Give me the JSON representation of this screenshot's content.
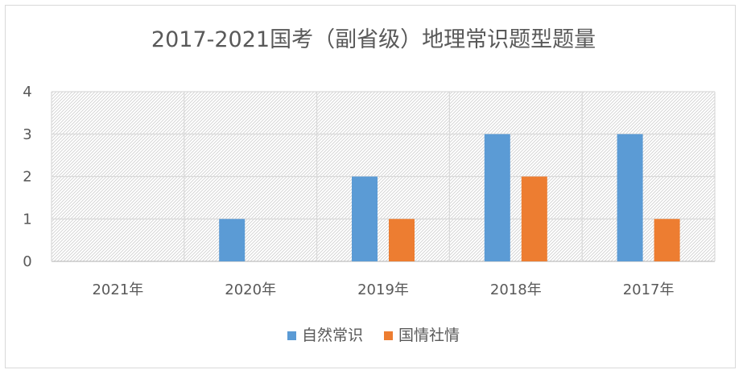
{
  "chart_data": {
    "type": "bar",
    "title": "2017-2021国考（副省级）地理常识题型题量",
    "categories": [
      "2021年",
      "2020年",
      "2019年",
      "2018年",
      "2017年"
    ],
    "series": [
      {
        "name": "自然常识",
        "color": "#5b9bd5",
        "values": [
          0,
          1,
          2,
          3,
          3
        ]
      },
      {
        "name": "国情社情",
        "color": "#ed7d31",
        "values": [
          0,
          0,
          1,
          2,
          1
        ]
      }
    ],
    "ylim": [
      0,
      4
    ],
    "yticks": [
      "0",
      "1",
      "2",
      "3",
      "4"
    ],
    "xlabel": "",
    "ylabel": "",
    "grid": true,
    "legend_position": "bottom"
  }
}
